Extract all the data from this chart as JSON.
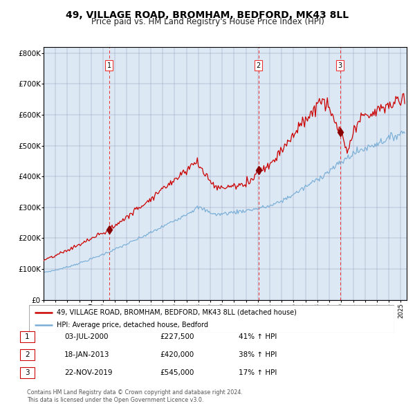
{
  "title": "49, VILLAGE ROAD, BROMHAM, BEDFORD, MK43 8LL",
  "subtitle": "Price paid vs. HM Land Registry's House Price Index (HPI)",
  "title_fontsize": 10,
  "subtitle_fontsize": 8.5,
  "background_color": "#dce9f5",
  "plot_bg_color": "#dce9f5",
  "red_line_color": "#cc0000",
  "blue_line_color": "#7aaed6",
  "marker_color": "#880000",
  "vline_color": "#ee3333",
  "sale_dates": [
    2000.5,
    2013.04,
    2019.9
  ],
  "sale_prices": [
    227500,
    420000,
    545000
  ],
  "sale_labels": [
    "1",
    "2",
    "3"
  ],
  "table_rows": [
    [
      "1",
      "03-JUL-2000",
      "£227,500",
      "41% ↑ HPI"
    ],
    [
      "2",
      "18-JAN-2013",
      "£420,000",
      "38% ↑ HPI"
    ],
    [
      "3",
      "22-NOV-2019",
      "£545,000",
      "17% ↑ HPI"
    ]
  ],
  "legend_entries": [
    "49, VILLAGE ROAD, BROMHAM, BEDFORD, MK43 8LL (detached house)",
    "HPI: Average price, detached house, Bedford"
  ],
  "footer_text": "Contains HM Land Registry data © Crown copyright and database right 2024.\nThis data is licensed under the Open Government Licence v3.0.",
  "ylim": [
    0,
    820000
  ],
  "yticks": [
    0,
    100000,
    200000,
    300000,
    400000,
    500000,
    600000,
    700000,
    800000
  ],
  "ytick_labels": [
    "£0",
    "£100K",
    "£200K",
    "£300K",
    "£400K",
    "£500K",
    "£600K",
    "£700K",
    "£800K"
  ]
}
